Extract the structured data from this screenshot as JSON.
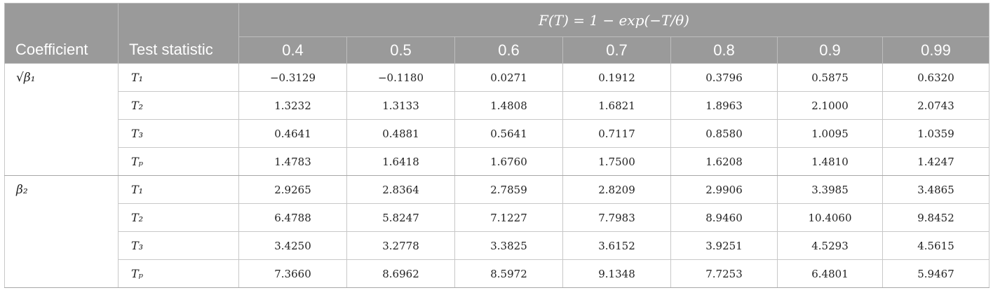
{
  "table": {
    "header": {
      "coefficient": "Coefficient",
      "test_statistic": "Test statistic",
      "formula": "F(T) = 1 − exp(−T/θ)",
      "columns": [
        "0.4",
        "0.5",
        "0.6",
        "0.7",
        "0.8",
        "0.9",
        "0.99"
      ]
    },
    "groups": [
      {
        "coefficient": "√β₁",
        "rows": [
          {
            "stat": "T₁",
            "values": [
              "−0.3129",
              "−0.1180",
              "0.0271",
              "0.1912",
              "0.3796",
              "0.5875",
              "0.6320"
            ]
          },
          {
            "stat": "T₂",
            "values": [
              "1.3232",
              "1.3133",
              "1.4808",
              "1.6821",
              "1.8963",
              "2.1000",
              "2.0743"
            ]
          },
          {
            "stat": "T₃",
            "values": [
              "0.4641",
              "0.4881",
              "0.5641",
              "0.7117",
              "0.8580",
              "1.0095",
              "1.0359"
            ]
          },
          {
            "stat": "Tₚ",
            "values": [
              "1.4783",
              "1.6418",
              "1.6760",
              "1.7500",
              "1.6208",
              "1.4810",
              "1.4247"
            ]
          }
        ]
      },
      {
        "coefficient": "β₂",
        "rows": [
          {
            "stat": "T₁",
            "values": [
              "2.9265",
              "2.8364",
              "2.7859",
              "2.8209",
              "2.9906",
              "3.3985",
              "3.4865"
            ]
          },
          {
            "stat": "T₂",
            "values": [
              "6.4788",
              "5.8247",
              "7.1227",
              "7.7983",
              "8.9460",
              "10.4060",
              "9.8452"
            ]
          },
          {
            "stat": "T₃",
            "values": [
              "3.4250",
              "3.2778",
              "3.3825",
              "3.6152",
              "3.9251",
              "4.5293",
              "4.5615"
            ]
          },
          {
            "stat": "Tₚ",
            "values": [
              "7.3660",
              "8.6962",
              "8.5972",
              "9.1348",
              "7.7253",
              "6.4801",
              "5.9467"
            ]
          }
        ]
      }
    ]
  }
}
